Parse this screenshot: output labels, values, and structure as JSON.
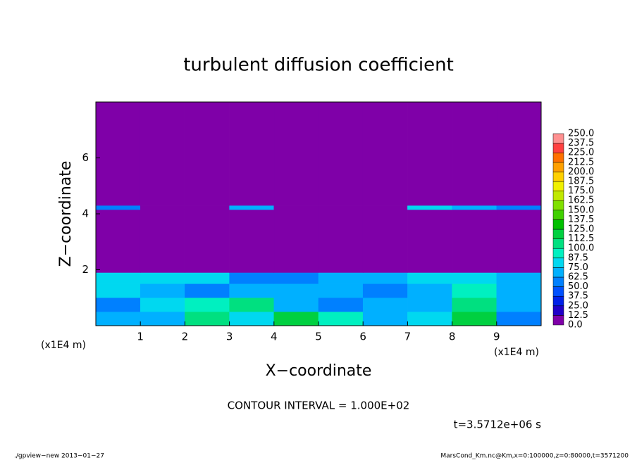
{
  "chart_data": {
    "type": "heatmap",
    "title": "turbulent diffusion coefficient",
    "x_label": "X−coordinate",
    "y_label": "Z−coordinate",
    "x_unit": "(x1E4 m)",
    "y_unit": "(x1E4 m)",
    "xlim": [
      0,
      10
    ],
    "ylim": [
      0,
      8
    ],
    "xticks": [
      1,
      2,
      3,
      4,
      5,
      6,
      7,
      8,
      9
    ],
    "yticks": [
      2,
      4,
      6
    ],
    "x_edges": [
      0,
      1,
      2,
      3,
      4,
      5,
      6,
      7,
      8,
      9,
      10
    ],
    "z_edges": [
      0,
      0.5,
      1,
      1.5,
      1.9,
      4.15,
      4.3,
      8
    ],
    "values": [
      [
        70,
        65,
        110,
        80,
        120,
        90,
        70,
        75,
        120,
        60
      ],
      [
        60,
        75,
        90,
        110,
        70,
        60,
        70,
        65,
        110,
        70
      ],
      [
        75,
        70,
        60,
        70,
        65,
        70,
        60,
        70,
        90,
        65
      ],
      [
        85,
        80,
        75,
        60,
        55,
        70,
        70,
        85,
        75,
        70
      ],
      [
        0,
        0,
        0,
        0,
        0,
        0,
        0,
        0,
        0,
        0
      ],
      [
        60,
        0,
        0,
        70,
        0,
        0,
        0,
        80,
        70,
        50
      ],
      [
        0,
        0,
        0,
        0,
        0,
        0,
        0,
        0,
        0,
        0
      ]
    ],
    "levels": [
      {
        "value": 0,
        "label": "0.0"
      },
      12.5,
      {
        "value": 25,
        "label": "25.0"
      },
      37.5,
      {
        "value": 50,
        "label": "50.0"
      },
      62.5,
      {
        "value": 75,
        "label": "75.0"
      },
      87.5,
      {
        "value": 100,
        "label": "100.0"
      },
      112.5,
      {
        "value": 125,
        "label": "125.0"
      },
      137.5,
      {
        "value": 150,
        "label": "150.0"
      },
      162.5,
      {
        "value": 175,
        "label": "175.0"
      },
      187.5,
      {
        "value": 200,
        "label": "200.0"
      },
      212.5,
      {
        "value": 225,
        "label": "225.0"
      },
      237.5,
      {
        "value": 250,
        "label": "250.0"
      }
    ],
    "level_colors": [
      "#7f00a8",
      "#2000c8",
      "#0020e8",
      "#0050ff",
      "#0080ff",
      "#00b0ff",
      "#00d8f0",
      "#00f0c0",
      "#00e080",
      "#00d040",
      "#00c000",
      "#40d000",
      "#80e000",
      "#c0e800",
      "#f0f000",
      "#ffd000",
      "#ffa000",
      "#ff7000",
      "#ff4040",
      "#ff9090"
    ],
    "contour_interval": "CONTOUR INTERVAL = 1.000E+02",
    "time_label": "t=3.5712e+06 s",
    "footer_left": "./gpview−new  2013−01−27",
    "footer_right": "MarsCond_Km.nc@Km,x=0:100000,z=0:80000,t=3571200"
  }
}
